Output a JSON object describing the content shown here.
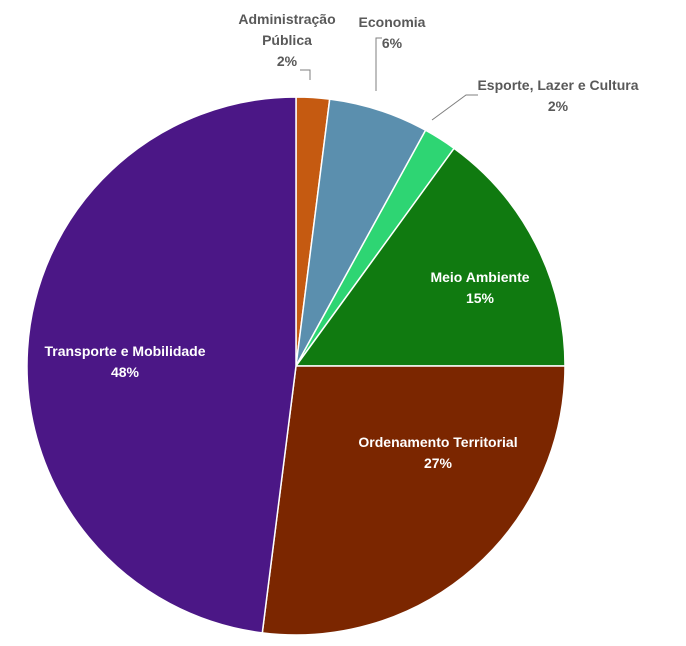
{
  "chart_data": {
    "type": "pie",
    "start_angle_deg": 0,
    "direction": "clockwise",
    "slices": [
      {
        "name": "Administração Pública",
        "label_lines": [
          "Administração",
          "Pública"
        ],
        "value": 2,
        "value_label": "2%",
        "color": "#c55a11"
      },
      {
        "name": "Economia",
        "label_lines": [
          "Economia"
        ],
        "value": 6,
        "value_label": "6%",
        "color": "#5b8fae"
      },
      {
        "name": "Esporte, Lazer e Cultura",
        "label_lines": [
          "Esporte,  Lazer e Cultura"
        ],
        "value": 2,
        "value_label": "2%",
        "color": "#2ed573"
      },
      {
        "name": "Meio Ambiente",
        "label_lines": [
          "Meio Ambiente"
        ],
        "value": 15,
        "value_label": "15%",
        "color": "#107a10"
      },
      {
        "name": "Ordenamento Territorial",
        "label_lines": [
          "Ordenamento  Territorial"
        ],
        "value": 27,
        "value_label": "27%",
        "color": "#7b2600"
      },
      {
        "name": "Transporte e Mobilidade",
        "label_lines": [
          "Transporte  e Mobilidade"
        ],
        "value": 48,
        "value_label": "48%",
        "color": "#4b1786"
      }
    ]
  }
}
